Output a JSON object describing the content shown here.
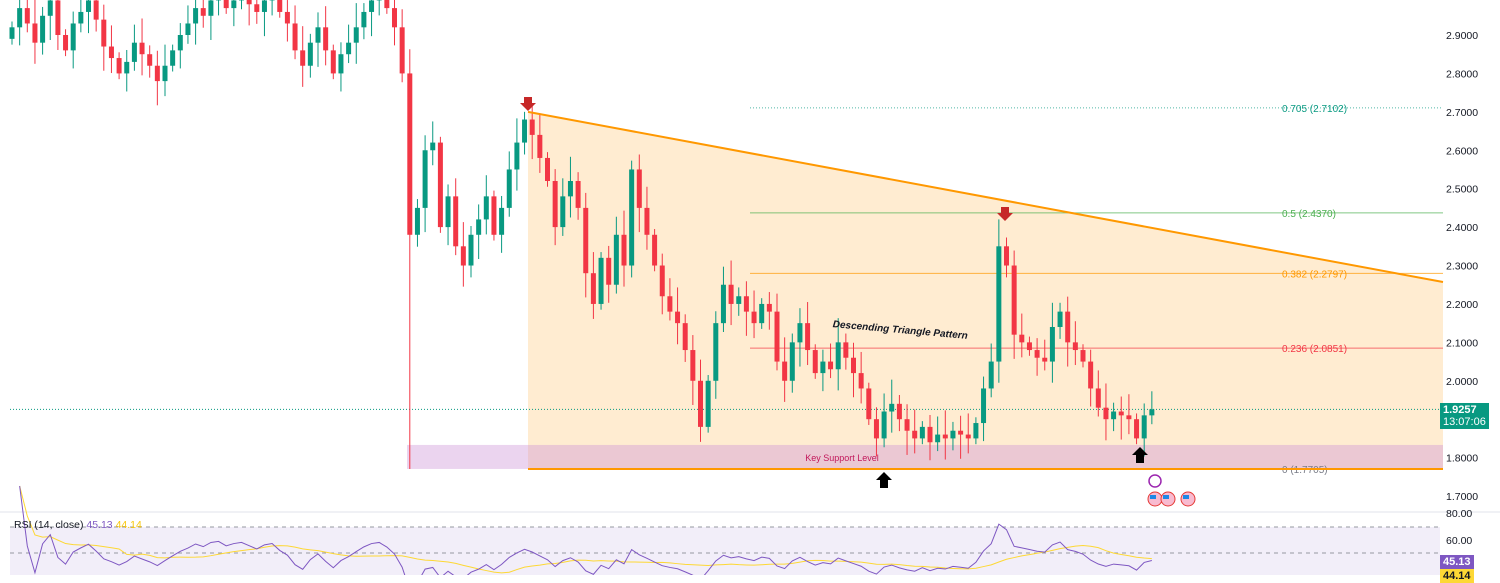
{
  "chart_data": {
    "type": "candlestick",
    "price_axis": {
      "ticks": [
        "2.9000",
        "2.8000",
        "2.7000",
        "2.6000",
        "2.5000",
        "2.4000",
        "2.3000",
        "2.2000",
        "2.1000",
        "2.0000",
        "1.8000",
        "1.7000"
      ],
      "range": [
        1.66,
        3.02
      ]
    },
    "closes": [
      2.92,
      2.97,
      2.93,
      2.88,
      2.95,
      2.99,
      2.9,
      2.86,
      2.93,
      2.96,
      2.99,
      2.94,
      2.87,
      2.84,
      2.8,
      2.83,
      2.88,
      2.85,
      2.82,
      2.78,
      2.82,
      2.86,
      2.9,
      2.93,
      2.97,
      2.95,
      2.99,
      3.0,
      2.97,
      2.99,
      3.0,
      2.98,
      2.96,
      2.99,
      3.0,
      2.96,
      2.93,
      2.86,
      2.82,
      2.88,
      2.92,
      2.86,
      2.8,
      2.85,
      2.88,
      2.92,
      2.96,
      2.99,
      3.0,
      2.97,
      2.92,
      2.8,
      2.38,
      2.45,
      2.6,
      2.62,
      2.4,
      2.48,
      2.35,
      2.3,
      2.38,
      2.42,
      2.48,
      2.38,
      2.45,
      2.55,
      2.62,
      2.68,
      2.64,
      2.58,
      2.52,
      2.4,
      2.48,
      2.52,
      2.45,
      2.28,
      2.2,
      2.32,
      2.25,
      2.38,
      2.3,
      2.55,
      2.45,
      2.38,
      2.3,
      2.22,
      2.18,
      2.15,
      2.08,
      2.0,
      1.88,
      2.0,
      2.15,
      2.25,
      2.2,
      2.22,
      2.18,
      2.15,
      2.2,
      2.18,
      2.05,
      2.0,
      2.1,
      2.15,
      2.08,
      2.02,
      2.05,
      2.03,
      2.1,
      2.06,
      2.02,
      1.98,
      1.9,
      1.85,
      1.92,
      1.94,
      1.9,
      1.87,
      1.85,
      1.88,
      1.84,
      1.86,
      1.85,
      1.87,
      1.86,
      1.85,
      1.89,
      1.98,
      2.05,
      2.35,
      2.3,
      2.12,
      2.1,
      2.08,
      2.06,
      2.05,
      2.14,
      2.18,
      2.1,
      2.08,
      2.05,
      1.98,
      1.93,
      1.9,
      1.92,
      1.91,
      1.9,
      1.85,
      1.91,
      1.9257
    ],
    "wick_override": {
      "52": 1.7705,
      "67": 2.7,
      "129": 2.42
    },
    "current_price": {
      "value": "1.9257",
      "countdown": "13:07:06",
      "price": 1.9257
    },
    "pattern": {
      "label": "Descending Triangle Pattern",
      "top_start": 2.7,
      "top_end": 2.257,
      "base": 1.7705
    },
    "support_zone": {
      "label": "Key Support Level",
      "top": 1.833,
      "bottom": 1.7705
    },
    "fib_levels": [
      {
        "label": "0.705 (2.7102)",
        "price": 2.7102,
        "color": "#089981"
      },
      {
        "label": "0.5 (2.4370)",
        "price": 2.437,
        "color": "#4caf50"
      },
      {
        "label": "0.382 (2.2797)",
        "price": 2.2797,
        "color": "#ff9800"
      },
      {
        "label": "0.236 (2.0851)",
        "price": 2.0851,
        "color": "#f23645"
      },
      {
        "label": "0 (1.7705)",
        "price": 1.7705,
        "color": "#787b86"
      }
    ],
    "rsi": {
      "title": "RSI (14, close)",
      "value": "45.13",
      "ma_value": "44.14",
      "ticks": [
        "80.00",
        "60.00"
      ],
      "range": [
        30,
        80
      ]
    },
    "colors": {
      "up": "#089981",
      "down": "#f23645",
      "rsi": "#7e57c2",
      "rsi_ma": "#fdd835"
    }
  }
}
